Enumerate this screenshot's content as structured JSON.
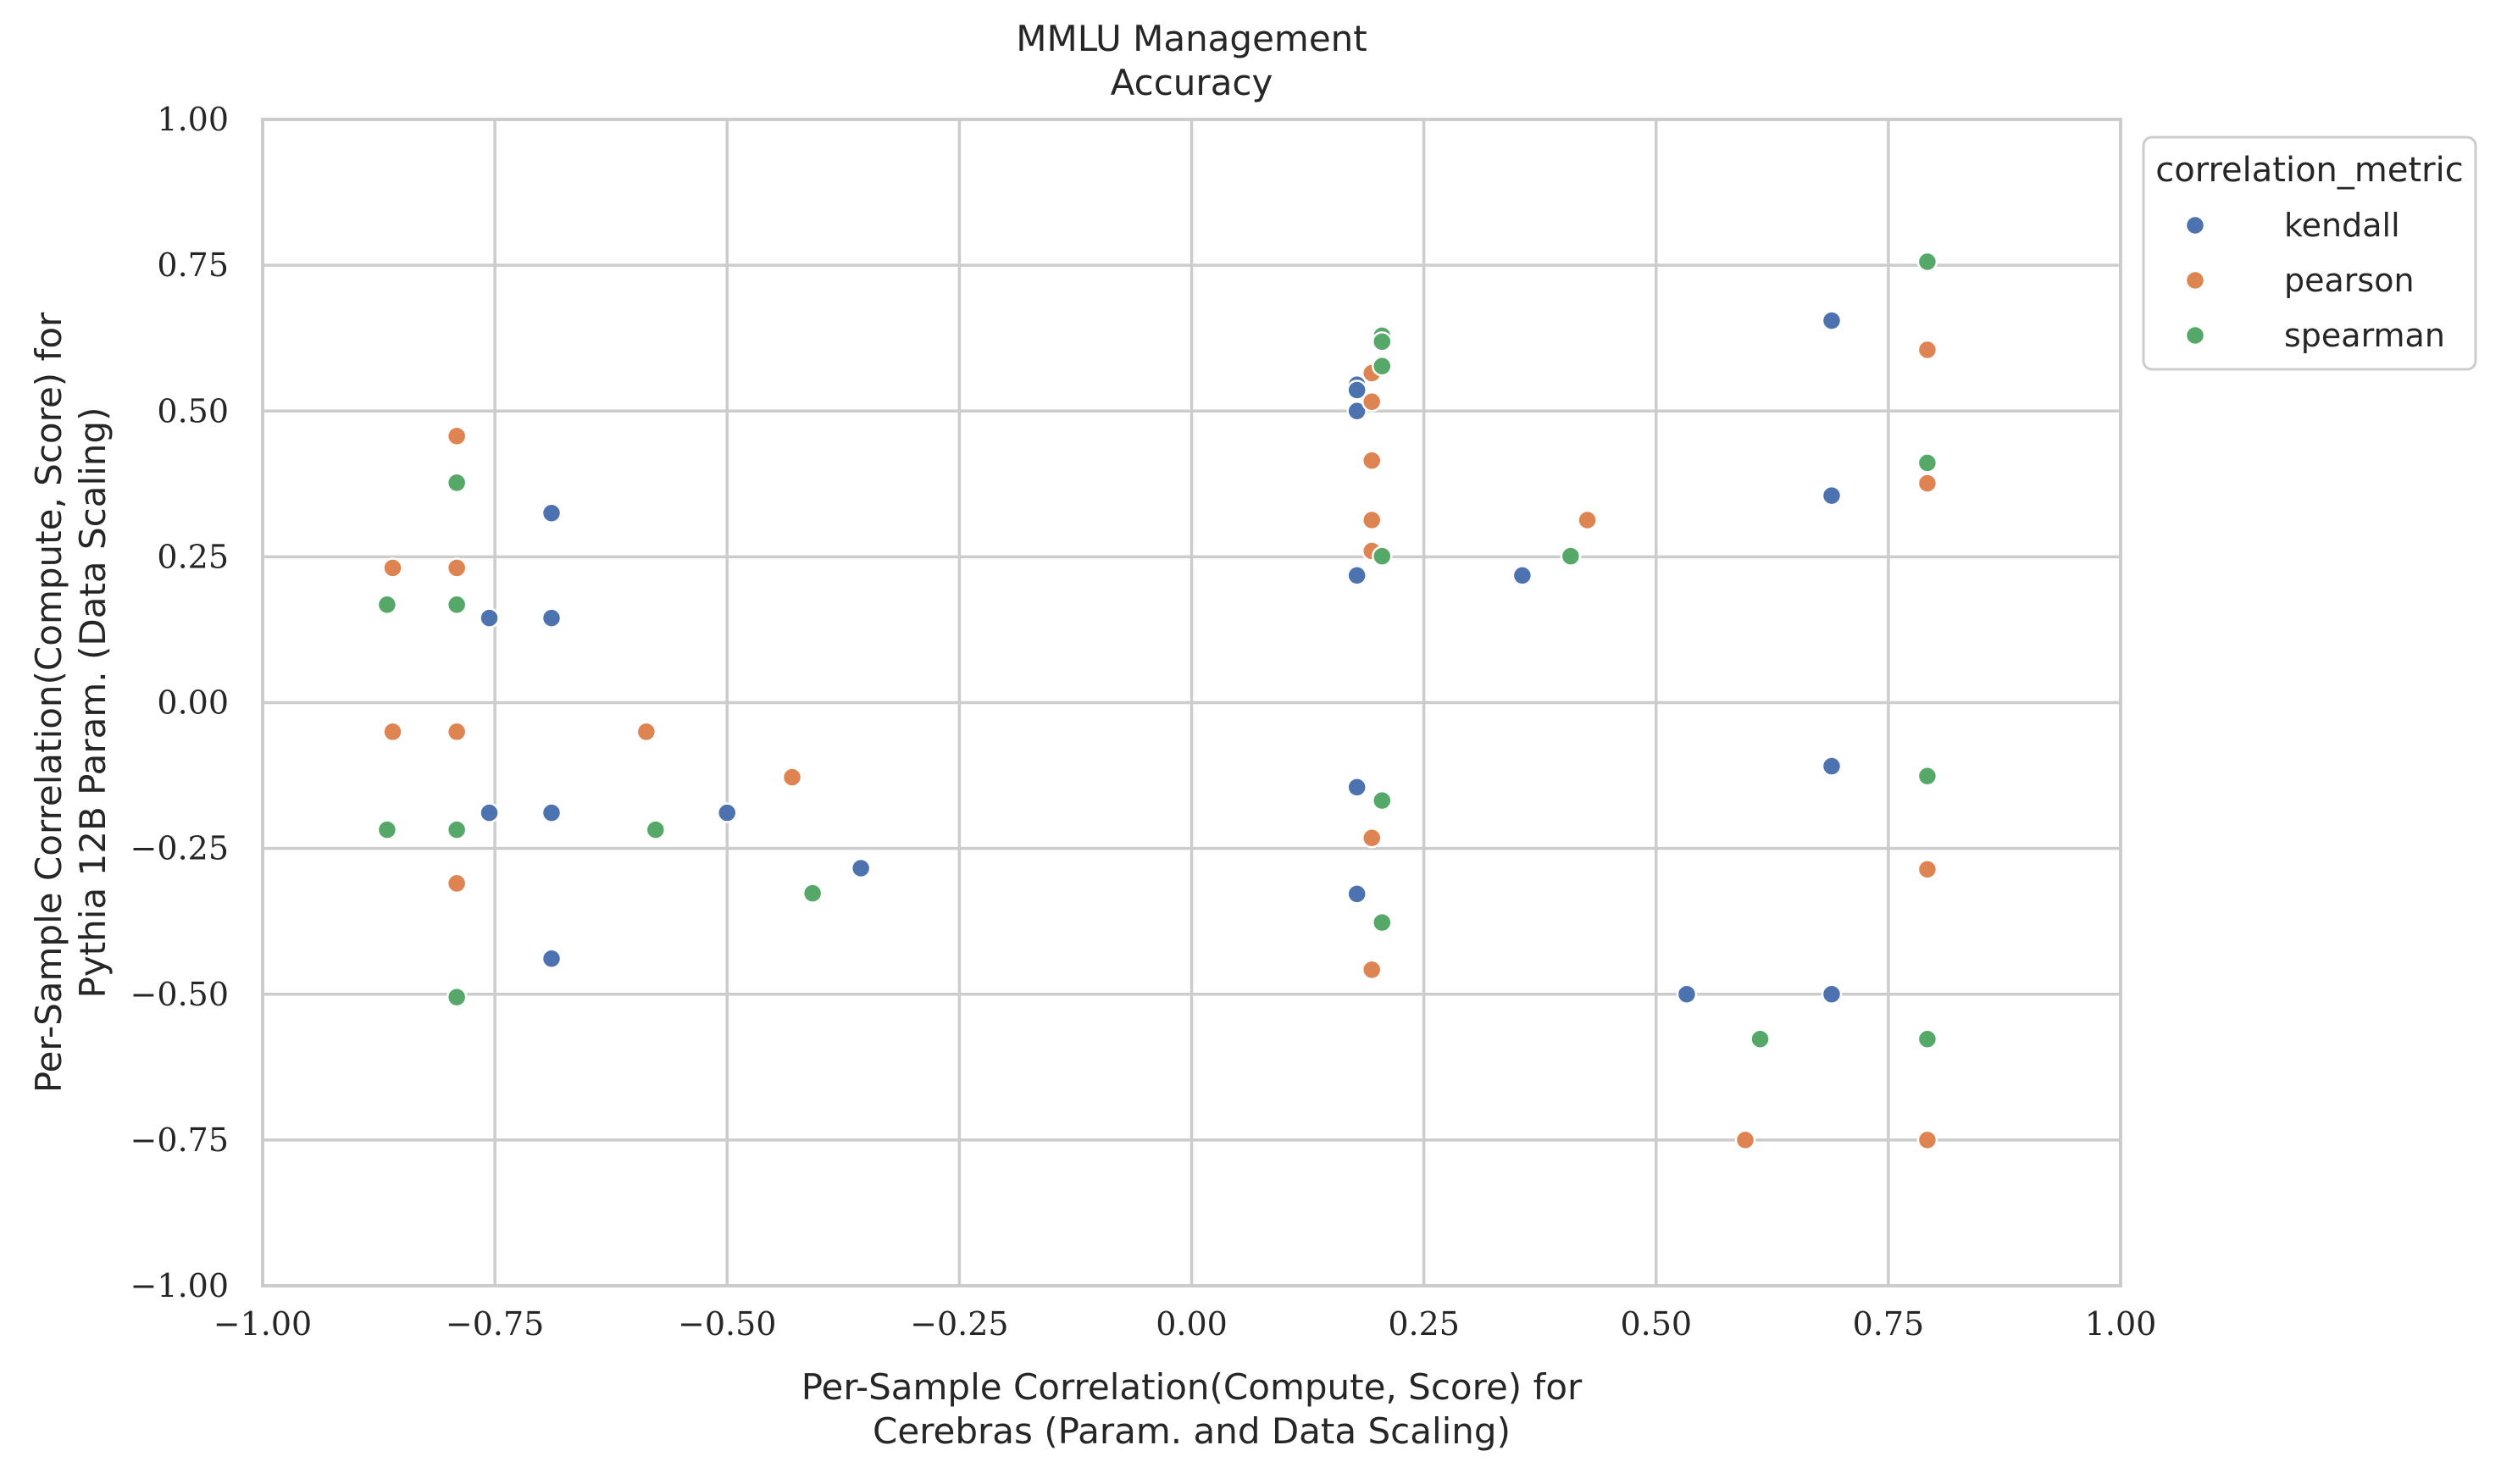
{
  "chart_data": {
    "type": "scatter",
    "title": [
      "MMLU Management",
      "Accuracy"
    ],
    "xlabel": [
      "Per-Sample Correlation(Compute, Score) for",
      "Cerebras (Param. and Data Scaling)"
    ],
    "ylabel": [
      "Per-Sample Correlation(Compute, Score) for",
      "Pythia 12B Param. (Data Scaling)"
    ],
    "xlim": [
      -1.0,
      1.0
    ],
    "ylim": [
      -1.0,
      1.0
    ],
    "xticks": [
      -1.0,
      -0.75,
      -0.5,
      -0.25,
      0.0,
      0.25,
      0.5,
      0.75,
      1.0
    ],
    "yticks": [
      -1.0,
      -0.75,
      -0.5,
      -0.25,
      0.0,
      0.25,
      0.5,
      0.75,
      1.0
    ],
    "xtick_labels": [
      "−1.00",
      "−0.75",
      "−0.50",
      "−0.25",
      "0.00",
      "0.25",
      "0.50",
      "0.75",
      "1.00"
    ],
    "ytick_labels": [
      "−1.00",
      "−0.75",
      "−0.50",
      "−0.25",
      "0.00",
      "0.25",
      "0.50",
      "0.75",
      "1.00"
    ],
    "grid": true,
    "legend": {
      "title": "correlation_metric",
      "placement": "outside-top-right"
    },
    "series": [
      {
        "name": "kendall",
        "color": "#4c72b0",
        "points": [
          [
            -0.756,
            0.145
          ],
          [
            -0.689,
            0.325
          ],
          [
            -0.689,
            0.145
          ],
          [
            -0.756,
            -0.189
          ],
          [
            -0.689,
            -0.189
          ],
          [
            -0.689,
            -0.439
          ],
          [
            -0.5,
            -0.189
          ],
          [
            -0.356,
            -0.284
          ],
          [
            0.178,
            0.545
          ],
          [
            0.178,
            0.536
          ],
          [
            0.178,
            0.5
          ],
          [
            0.178,
            0.218
          ],
          [
            0.178,
            -0.145
          ],
          [
            0.178,
            -0.328
          ],
          [
            0.356,
            0.218
          ],
          [
            0.689,
            0.655
          ],
          [
            0.689,
            0.355
          ],
          [
            0.689,
            -0.109
          ],
          [
            0.533,
            -0.5
          ],
          [
            0.689,
            -0.5
          ]
        ]
      },
      {
        "name": "pearson",
        "color": "#dd8452",
        "points": [
          [
            -0.86,
            0.231
          ],
          [
            -0.791,
            0.457
          ],
          [
            -0.791,
            0.231
          ],
          [
            -0.86,
            -0.05
          ],
          [
            -0.791,
            -0.05
          ],
          [
            -0.791,
            -0.31
          ],
          [
            -0.587,
            -0.05
          ],
          [
            -0.43,
            -0.128
          ],
          [
            0.194,
            0.565
          ],
          [
            0.194,
            0.516
          ],
          [
            0.194,
            0.415
          ],
          [
            0.194,
            0.313
          ],
          [
            0.194,
            0.26
          ],
          [
            0.194,
            -0.232
          ],
          [
            0.194,
            -0.458
          ],
          [
            0.426,
            0.313
          ],
          [
            0.596,
            -0.75
          ],
          [
            0.792,
            0.605
          ],
          [
            0.792,
            0.376
          ],
          [
            0.792,
            -0.286
          ],
          [
            0.792,
            -0.75
          ]
        ]
      },
      {
        "name": "spearman",
        "color": "#55a868",
        "points": [
          [
            -0.866,
            0.168
          ],
          [
            -0.791,
            0.377
          ],
          [
            -0.791,
            0.168
          ],
          [
            -0.866,
            -0.218
          ],
          [
            -0.791,
            -0.218
          ],
          [
            -0.791,
            -0.505
          ],
          [
            -0.577,
            -0.218
          ],
          [
            -0.408,
            -0.327
          ],
          [
            0.205,
            0.629
          ],
          [
            0.205,
            0.619
          ],
          [
            0.205,
            0.577
          ],
          [
            0.205,
            0.251
          ],
          [
            0.205,
            -0.168
          ],
          [
            0.205,
            -0.377
          ],
          [
            0.408,
            0.251
          ],
          [
            0.612,
            -0.577
          ],
          [
            0.792,
            0.756
          ],
          [
            0.792,
            0.411
          ],
          [
            0.792,
            -0.126
          ],
          [
            0.792,
            -0.577
          ]
        ]
      }
    ]
  }
}
